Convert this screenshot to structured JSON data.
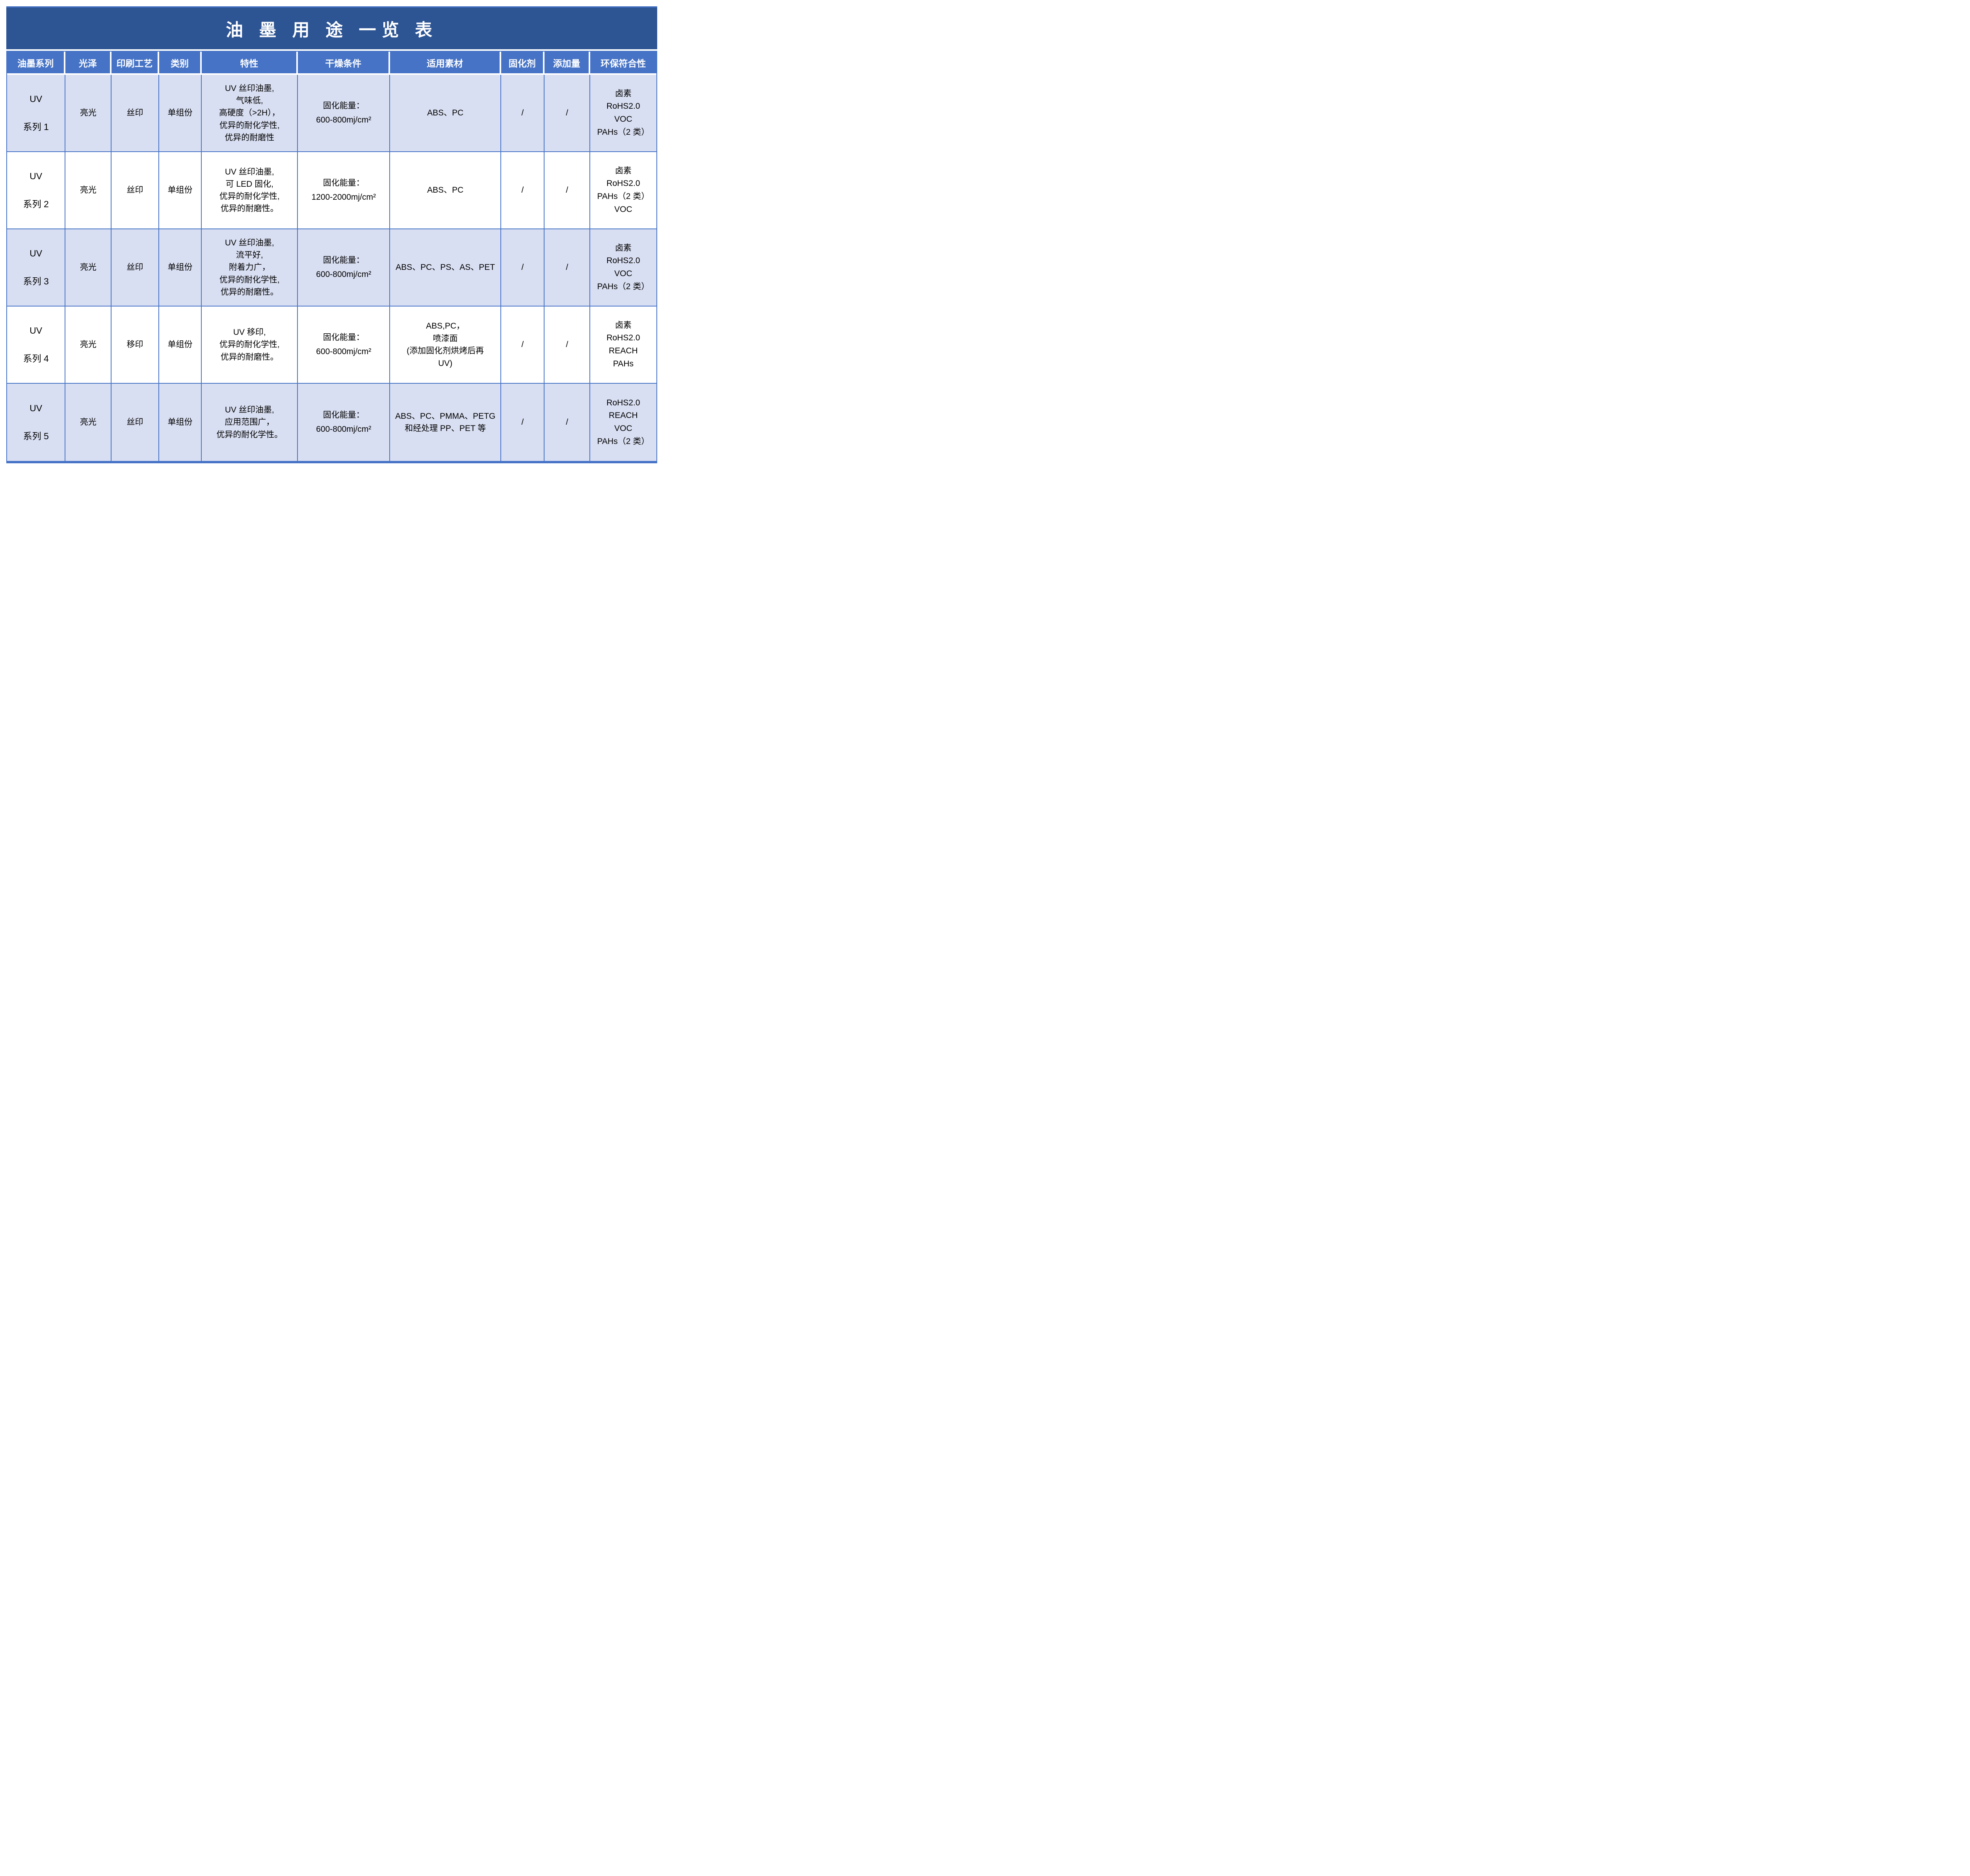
{
  "title": "油 墨 用 途 一览 表",
  "colors": {
    "title_bg": "#2d5493",
    "header_bg": "#4673c6",
    "row_alt_bg": "#d9dff2",
    "row_bg": "#ffffff",
    "border": "#4673c6",
    "header_text": "#ffffff",
    "body_text": "#000000"
  },
  "table": {
    "headers": [
      "油墨系列",
      "光泽",
      "印刷工艺",
      "类别",
      "特性",
      "干燥条件",
      "适用素材",
      "固化剂",
      "添加量",
      "环保符合性"
    ],
    "rows": [
      {
        "series": "UV\n系列 1",
        "gloss": "亮光",
        "process": "丝印",
        "category": "单组份",
        "features": "UV 丝印油墨,\n气味低,\n高硬度（>2H），\n优异的耐化学性,\n优异的耐磨性",
        "drying": "固化能量：\n600-800mj/cm²",
        "substrates": "ABS、PC",
        "curing_agent": "/",
        "addition": "/",
        "compliance": "卤素\nRoHS2.0\nVOC\nPAHs（2 类）"
      },
      {
        "series": "UV\n系列 2",
        "gloss": "亮光",
        "process": "丝印",
        "category": "单组份",
        "features": "UV 丝印油墨,\n可 LED 固化,\n优异的耐化学性,\n优异的耐磨性。",
        "drying": "固化能量：\n1200-2000mj/cm²",
        "substrates": "ABS、PC",
        "curing_agent": "/",
        "addition": "/",
        "compliance": "卤素\nRoHS2.0\nPAHs（2 类）\nVOC"
      },
      {
        "series": "UV\n系列 3",
        "gloss": "亮光",
        "process": "丝印",
        "category": "单组份",
        "features": "UV 丝印油墨,\n流平好,\n附着力广，\n优异的耐化学性,\n优异的耐磨性。",
        "drying": "固化能量：\n600-800mj/cm²",
        "substrates": "ABS、PC、PS、AS、PET",
        "curing_agent": "/",
        "addition": "/",
        "compliance": "卤素\nRoHS2.0\nVOC\nPAHs（2 类）"
      },
      {
        "series": "UV\n系列 4",
        "gloss": "亮光",
        "process": "移印",
        "category": "单组份",
        "features": "UV  移印,\n优异的耐化学性,\n优异的耐磨性。",
        "drying": "固化能量：\n600-800mj/cm²",
        "substrates": "ABS,PC，\n喷漆面\n(添加固化剂烘烤后再\nUV)",
        "curing_agent": "/",
        "addition": "/",
        "compliance": "卤素\nRoHS2.0\nREACH\nPAHs"
      },
      {
        "series": "UV\n系列 5",
        "gloss": "亮光",
        "process": "丝印",
        "category": "单组份",
        "features": "UV 丝印油墨,\n应用范围广，\n优异的耐化学性。",
        "drying": "固化能量：\n600-800mj/cm²",
        "substrates": "ABS、PC、PMMA、PETG\n和经处理 PP、PET 等",
        "curing_agent": "/",
        "addition": "/",
        "compliance": "RoHS2.0\nREACH\nVOC\nPAHs（2 类）"
      }
    ]
  }
}
